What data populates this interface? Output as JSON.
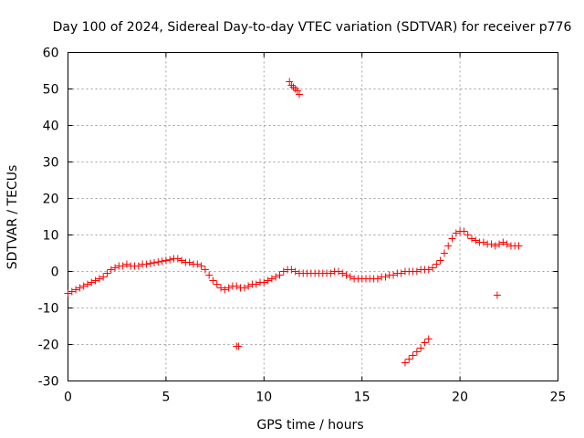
{
  "chart_data": {
    "type": "scatter",
    "title": "Day 100 of 2024, Sidereal Day-to-day VTEC variation (SDTVAR) for receiver p776",
    "xlabel": "GPS time / hours",
    "ylabel": "SDTVAR / TECUs",
    "xlim": [
      0,
      25
    ],
    "ylim": [
      -30,
      60
    ],
    "xticks": [
      0,
      5,
      10,
      15,
      20,
      25
    ],
    "yticks": [
      -30,
      -20,
      -10,
      0,
      10,
      20,
      30,
      40,
      50,
      60
    ],
    "xtick_labels": [
      "0",
      "5",
      "10",
      "15",
      "20",
      "25"
    ],
    "ytick_labels": [
      "-30",
      "-20",
      "-10",
      "0",
      "10",
      "20",
      "30",
      "40",
      "50",
      "60"
    ],
    "grid": true,
    "marker": "+",
    "series": [
      {
        "name": "p776",
        "color": "#ff0000",
        "x": [
          0.0,
          0.2,
          0.4,
          0.6,
          0.8,
          1.0,
          1.2,
          1.4,
          1.6,
          1.8,
          2.0,
          2.2,
          2.4,
          2.6,
          2.8,
          3.0,
          3.2,
          3.4,
          3.6,
          3.8,
          4.0,
          4.2,
          4.4,
          4.6,
          4.8,
          5.0,
          5.2,
          5.4,
          5.6,
          5.8,
          6.0,
          6.2,
          6.4,
          6.6,
          6.8,
          7.0,
          7.2,
          7.4,
          7.6,
          7.8,
          8.0,
          8.2,
          8.4,
          8.6,
          8.8,
          9.0,
          9.2,
          9.4,
          9.6,
          9.8,
          10.0,
          10.2,
          10.4,
          10.6,
          10.8,
          11.0,
          11.2,
          11.4,
          11.6,
          11.8,
          12.0,
          12.2,
          12.4,
          12.6,
          12.8,
          13.0,
          13.2,
          13.4,
          13.6,
          13.8,
          14.0,
          14.2,
          14.4,
          14.6,
          14.8,
          15.0,
          15.2,
          15.4,
          15.6,
          15.8,
          16.0,
          16.2,
          16.4,
          16.6,
          16.8,
          17.0,
          17.2,
          17.4,
          17.6,
          17.8,
          18.0,
          18.2,
          18.4,
          18.6,
          18.8,
          19.0,
          19.2,
          19.4,
          19.6,
          19.8,
          20.0,
          20.2,
          20.4,
          20.6,
          20.8,
          21.0,
          21.2,
          21.4,
          21.6,
          21.8,
          22.0,
          22.2,
          22.4,
          22.6,
          22.8,
          23.0,
          11.3,
          11.4,
          11.5,
          11.6,
          11.7,
          11.8,
          8.6,
          8.7,
          21.9,
          17.2,
          17.4,
          17.6,
          17.8,
          18.0,
          18.2,
          18.4
        ],
        "y": [
          -6,
          -5.5,
          -5,
          -4.5,
          -4,
          -3.5,
          -3,
          -2.5,
          -2,
          -1.5,
          -0.5,
          0.5,
          1,
          1.5,
          1.5,
          2,
          1.5,
          1.5,
          1.5,
          2,
          2,
          2.2,
          2.4,
          2.6,
          2.8,
          3,
          3.2,
          3.5,
          3.5,
          3,
          2.5,
          2.5,
          2,
          2,
          1.5,
          0.5,
          -1,
          -2.5,
          -3.5,
          -4.5,
          -5,
          -4.5,
          -4,
          -4,
          -4.5,
          -4.5,
          -4,
          -3.5,
          -3.5,
          -3,
          -3,
          -2.5,
          -2,
          -1.5,
          -1,
          0,
          0.5,
          0.5,
          0,
          -0.5,
          -0.5,
          -0.5,
          -0.5,
          -0.5,
          -0.5,
          -0.5,
          -0.5,
          -0.5,
          0,
          0,
          -0.5,
          -1,
          -1.5,
          -2,
          -2,
          -2,
          -2,
          -2,
          -2,
          -2,
          -1.5,
          -1.5,
          -1,
          -1,
          -0.5,
          -0.5,
          0,
          0,
          0,
          0,
          0.5,
          0.5,
          0.5,
          1,
          2,
          3,
          5,
          7,
          9,
          10.5,
          11,
          11,
          10,
          9,
          8.5,
          8,
          8,
          7.5,
          7.5,
          7,
          7.5,
          8,
          7.5,
          7,
          7,
          7,
          52,
          51,
          50.5,
          50,
          49.5,
          48.5,
          -20.5,
          -20.5,
          -6.5,
          -25,
          -24,
          -23,
          -22,
          -21,
          -19.5,
          -18.5
        ]
      }
    ]
  }
}
